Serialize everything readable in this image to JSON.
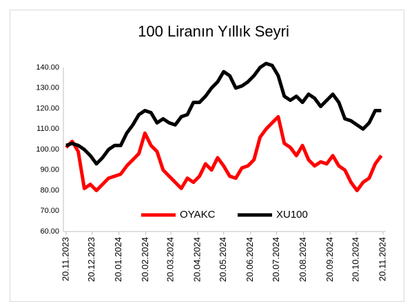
{
  "chart_data": {
    "type": "line",
    "title": "100 Liranın Yıllık Seyri",
    "x": [
      "20.11.2023",
      "27.11.2023",
      "04.12.2023",
      "11.12.2023",
      "18.12.2023",
      "25.12.2023",
      "01.01.2024",
      "08.01.2024",
      "15.01.2024",
      "22.01.2024",
      "29.01.2024",
      "05.02.2024",
      "12.02.2024",
      "19.02.2024",
      "26.02.2024",
      "04.03.2024",
      "11.03.2024",
      "18.03.2024",
      "25.03.2024",
      "01.04.2024",
      "08.04.2024",
      "15.04.2024",
      "22.04.2024",
      "29.04.2024",
      "06.05.2024",
      "13.05.2024",
      "20.05.2024",
      "27.05.2024",
      "03.06.2024",
      "10.06.2024",
      "17.06.2024",
      "24.06.2024",
      "01.07.2024",
      "08.07.2024",
      "15.07.2024",
      "22.07.2024",
      "29.07.2024",
      "05.08.2024",
      "12.08.2024",
      "19.08.2024",
      "26.08.2024",
      "02.09.2024",
      "09.09.2024",
      "16.09.2024",
      "23.09.2024",
      "30.09.2024",
      "07.10.2024",
      "14.10.2024",
      "21.10.2024",
      "28.10.2024",
      "04.11.2024",
      "11.11.2024",
      "18.11.2024"
    ],
    "series": [
      {
        "name": "OYAKC",
        "color": "#ff0000",
        "values": [
          101,
          104,
          99,
          81,
          83,
          80,
          83,
          86,
          87,
          88,
          92,
          95,
          98,
          108,
          102,
          99,
          90,
          87,
          84,
          81,
          86,
          84,
          87,
          93,
          90,
          96,
          92,
          87,
          86,
          91,
          92,
          95,
          106,
          110,
          113,
          116,
          103,
          101,
          97,
          102,
          95,
          92,
          94,
          93,
          97,
          92,
          90,
          84,
          80,
          84,
          86,
          93,
          97
        ]
      },
      {
        "name": "XU100",
        "color": "#000000",
        "values": [
          102,
          103,
          102,
          100,
          97,
          93,
          96,
          100,
          102,
          102,
          108,
          112,
          117,
          119,
          118,
          113,
          115,
          113,
          112,
          116,
          117,
          123,
          123,
          126,
          130,
          133,
          138,
          136,
          130,
          131,
          133,
          136,
          140,
          142,
          141,
          136,
          126,
          124,
          126,
          123,
          127,
          125,
          121,
          124,
          127,
          123,
          115,
          114,
          112,
          110,
          113,
          119,
          119
        ]
      }
    ],
    "xlim": [
      "20.11.2023",
      "20.11.2024"
    ],
    "xticks": [
      "20.11.2023",
      "20.12.2023",
      "20.01.2024",
      "20.02.2024",
      "20.03.2024",
      "20.04.2024",
      "20.05.2024",
      "20.06.2024",
      "20.07.2024",
      "20.08.2024",
      "20.09.2024",
      "20.10.2024",
      "20.11.2024"
    ],
    "ylim": [
      60,
      140
    ],
    "yticks": [
      {
        "value": 60,
        "label": "60.00"
      },
      {
        "value": 70,
        "label": "70.00"
      },
      {
        "value": 80,
        "label": "80.00"
      },
      {
        "value": 90,
        "label": "90.00"
      },
      {
        "value": 100,
        "label": "100.00"
      },
      {
        "value": 110,
        "label": "110.00"
      },
      {
        "value": 120,
        "label": "120.00"
      },
      {
        "value": 130,
        "label": "130.00"
      },
      {
        "value": 140,
        "label": "140.00"
      }
    ],
    "grid": false,
    "legend": "bottom"
  }
}
